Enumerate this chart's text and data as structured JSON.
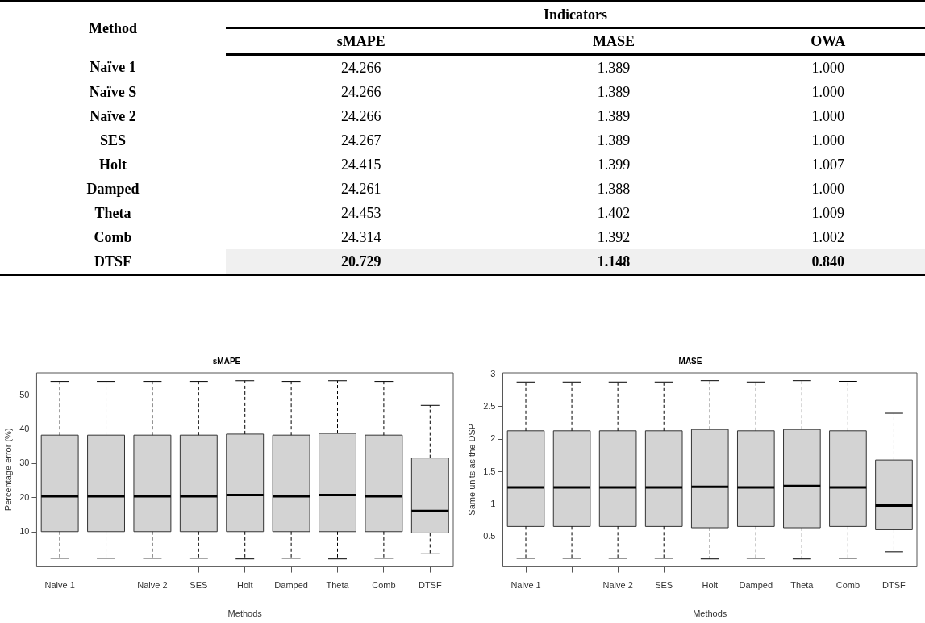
{
  "chart_data": [
    {
      "type": "other",
      "title": "Indicators",
      "ylabel": "Method",
      "categories": [
        "sMAPE",
        "MASE",
        "OWA"
      ],
      "y_categories": [
        "Naïve 1",
        "Naïve S",
        "Naïve 2",
        "SES",
        "Holt",
        "Damped",
        "Theta",
        "Comb",
        "DTSF"
      ],
      "cell_labels": [
        [
          "24.266",
          "1.389",
          "1.000"
        ],
        [
          "24.266",
          "1.389",
          "1.000"
        ],
        [
          "24.266",
          "1.389",
          "1.000"
        ],
        [
          "24.267",
          "1.389",
          "1.000"
        ],
        [
          "24.415",
          "1.399",
          "1.007"
        ],
        [
          "24.261",
          "1.388",
          "1.000"
        ],
        [
          "24.453",
          "1.402",
          "1.009"
        ],
        [
          "24.314",
          "1.392",
          "1.002"
        ],
        [
          "20.729",
          "1.148",
          "0.840"
        ]
      ]
    },
    {
      "type": "box",
      "title": "sMAPE",
      "xlabel": "Methods",
      "ylabel": "Percentage error (%)",
      "color": "#d3d3d3",
      "categories": [
        "Naive 1",
        null,
        "Naive 2",
        "SES",
        "Holt",
        "Damped",
        "Theta",
        "Comb",
        "DTSF"
      ],
      "ylim": [
        0,
        56.5
      ],
      "yticks": [
        10,
        20,
        30,
        40,
        50
      ],
      "grid": false,
      "legend": false,
      "boxes": [
        {
          "low": 2.3,
          "q1": 10.1,
          "median": 20.4,
          "q3": 38.3,
          "high": 54.0
        },
        {
          "low": 2.3,
          "q1": 10.1,
          "median": 20.4,
          "q3": 38.3,
          "high": 54.0
        },
        {
          "low": 2.3,
          "q1": 10.1,
          "median": 20.4,
          "q3": 38.3,
          "high": 54.0
        },
        {
          "low": 2.3,
          "q1": 10.1,
          "median": 20.4,
          "q3": 38.3,
          "high": 54.0
        },
        {
          "low": 2.1,
          "q1": 10.1,
          "median": 20.8,
          "q3": 38.6,
          "high": 54.2
        },
        {
          "low": 2.3,
          "q1": 10.1,
          "median": 20.4,
          "q3": 38.3,
          "high": 54.0
        },
        {
          "low": 2.1,
          "q1": 10.1,
          "median": 20.8,
          "q3": 38.8,
          "high": 54.2
        },
        {
          "low": 2.3,
          "q1": 10.1,
          "median": 20.4,
          "q3": 38.3,
          "high": 54.0
        },
        {
          "low": 3.6,
          "q1": 9.7,
          "median": 16.1,
          "q3": 31.6,
          "high": 47.0
        }
      ]
    },
    {
      "type": "box",
      "title": "MASE",
      "xlabel": "Methods",
      "ylabel": "Same units as the DSP",
      "color": "#d3d3d3",
      "categories": [
        "Naive 1",
        null,
        "Naive 2",
        "SES",
        "Holt",
        "Damped",
        "Theta",
        "Comb",
        "DTSF"
      ],
      "ylim": [
        0.05,
        3.02
      ],
      "yticks": [
        0.5,
        1.0,
        1.5,
        2.0,
        2.5,
        3.0
      ],
      "grid": false,
      "legend": false,
      "boxes": [
        {
          "low": 0.17,
          "q1": 0.66,
          "median": 1.26,
          "q3": 2.13,
          "high": 2.88
        },
        {
          "low": 0.17,
          "q1": 0.66,
          "median": 1.26,
          "q3": 2.13,
          "high": 2.88
        },
        {
          "low": 0.17,
          "q1": 0.66,
          "median": 1.26,
          "q3": 2.13,
          "high": 2.88
        },
        {
          "low": 0.17,
          "q1": 0.66,
          "median": 1.26,
          "q3": 2.13,
          "high": 2.88
        },
        {
          "low": 0.16,
          "q1": 0.64,
          "median": 1.27,
          "q3": 2.15,
          "high": 2.9
        },
        {
          "low": 0.17,
          "q1": 0.66,
          "median": 1.26,
          "q3": 2.13,
          "high": 2.88
        },
        {
          "low": 0.16,
          "q1": 0.64,
          "median": 1.28,
          "q3": 2.15,
          "high": 2.9
        },
        {
          "low": 0.17,
          "q1": 0.66,
          "median": 1.26,
          "q3": 2.13,
          "high": 2.89
        },
        {
          "low": 0.27,
          "q1": 0.61,
          "median": 0.98,
          "q3": 1.68,
          "high": 2.4
        }
      ]
    }
  ]
}
